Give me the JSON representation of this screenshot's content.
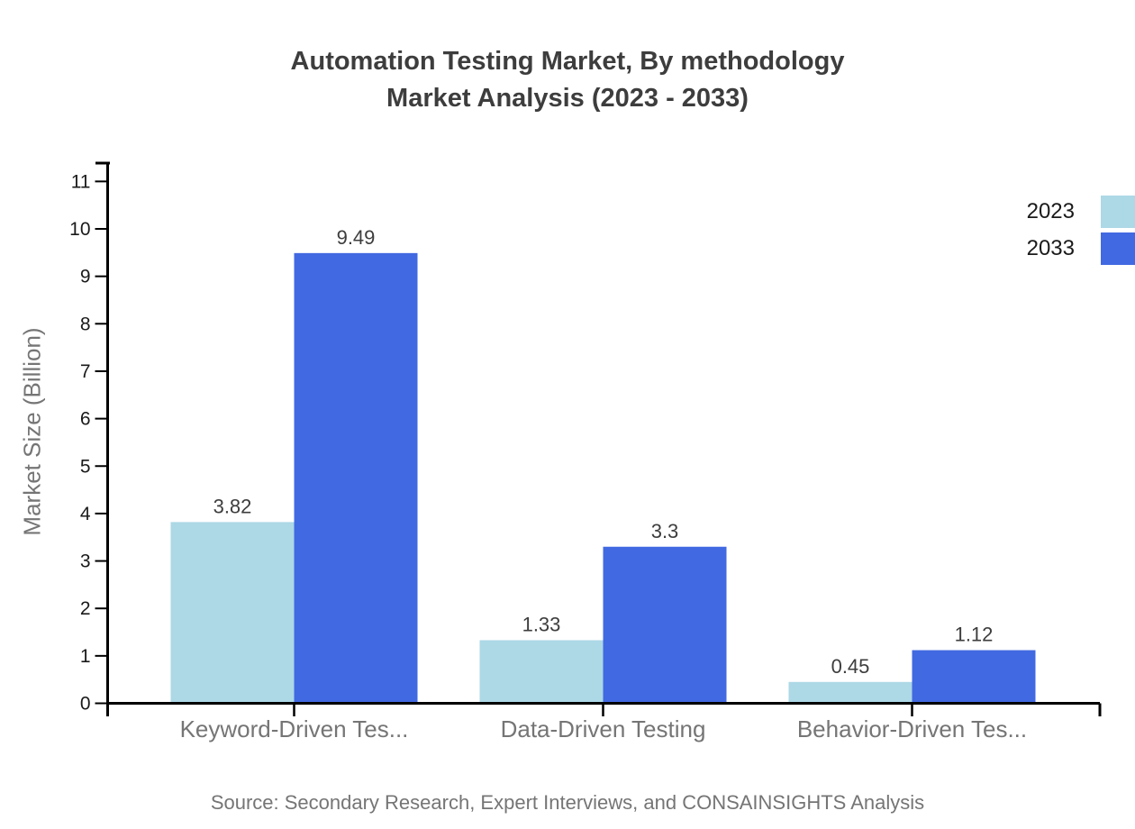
{
  "title": {
    "line1": "Automation Testing Market, By methodology",
    "line2": "Market Analysis (2023 - 2033)"
  },
  "source_note": "Source: Secondary Research, Expert Interviews, and CONSAINSIGHTS Analysis",
  "colors": {
    "series_2023": "#ADD8E6",
    "series_2033": "#4169E1",
    "axis": "#000000",
    "tick_text": "#1a1a1a",
    "value_label": "#3d3d3d",
    "title_text": "#3d3d3d",
    "muted_text": "#757575"
  },
  "chart_data": {
    "type": "bar",
    "title": "Automation Testing Market, By methodology Market Analysis (2023 - 2033)",
    "categories": [
      "Keyword-Driven Tes...",
      "Data-Driven Testing",
      "Behavior-Driven Tes..."
    ],
    "series": [
      {
        "name": "2023",
        "color": "#ADD8E6",
        "values": [
          3.82,
          1.33,
          0.45
        ]
      },
      {
        "name": "2033",
        "color": "#4169E1",
        "values": [
          9.49,
          3.3,
          1.12
        ]
      }
    ],
    "xlabel": "",
    "ylabel": "Market Size (Billion)",
    "ylim": [
      0,
      11
    ],
    "yticks": [
      0,
      1,
      2,
      3,
      4,
      5,
      6,
      7,
      8,
      9,
      10,
      11
    ],
    "grid": false,
    "legend_position": "top-right",
    "value_labels_shown": true
  }
}
